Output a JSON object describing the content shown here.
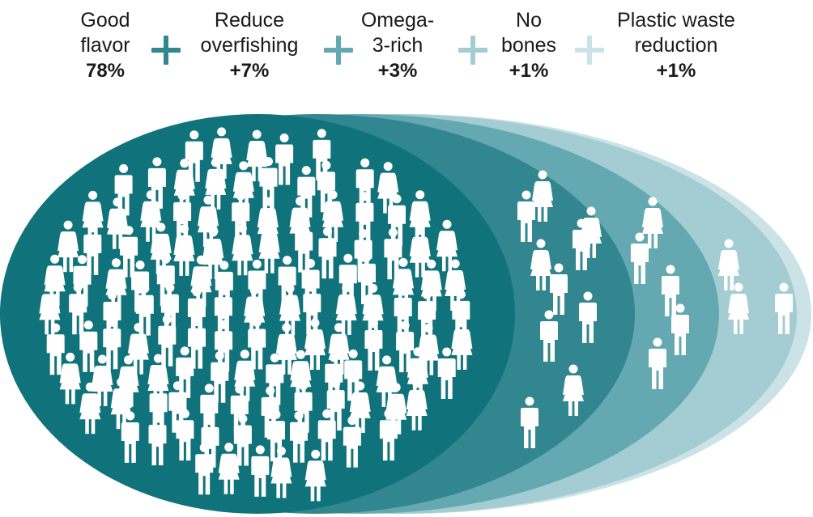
{
  "chart_data": {
    "type": "area",
    "title": "",
    "categories": [
      "Good flavor",
      "Reduce overfishing",
      "Omega-3-rich",
      "No bones",
      "Plastic waste reduction"
    ],
    "series": [
      {
        "label": "Good\nflavor",
        "value_text": "78%",
        "value": 78,
        "color": "#10737c"
      },
      {
        "label": "Reduce\noverfishing",
        "value_text": "+7%",
        "value": 7,
        "color": "#31868f"
      },
      {
        "label": "Omega-\n3-rich",
        "value_text": "+3%",
        "value": 3,
        "color": "#64a9b1"
      },
      {
        "label": "No\nbones",
        "value_text": "+1%",
        "value": 1,
        "color": "#a3cdd3"
      },
      {
        "label": "Plastic waste\nreduction",
        "value_text": "+1%",
        "value": 1,
        "color": "#cbe3e7"
      }
    ],
    "people_per_series": [
      140,
      10,
      5,
      2,
      1
    ]
  }
}
